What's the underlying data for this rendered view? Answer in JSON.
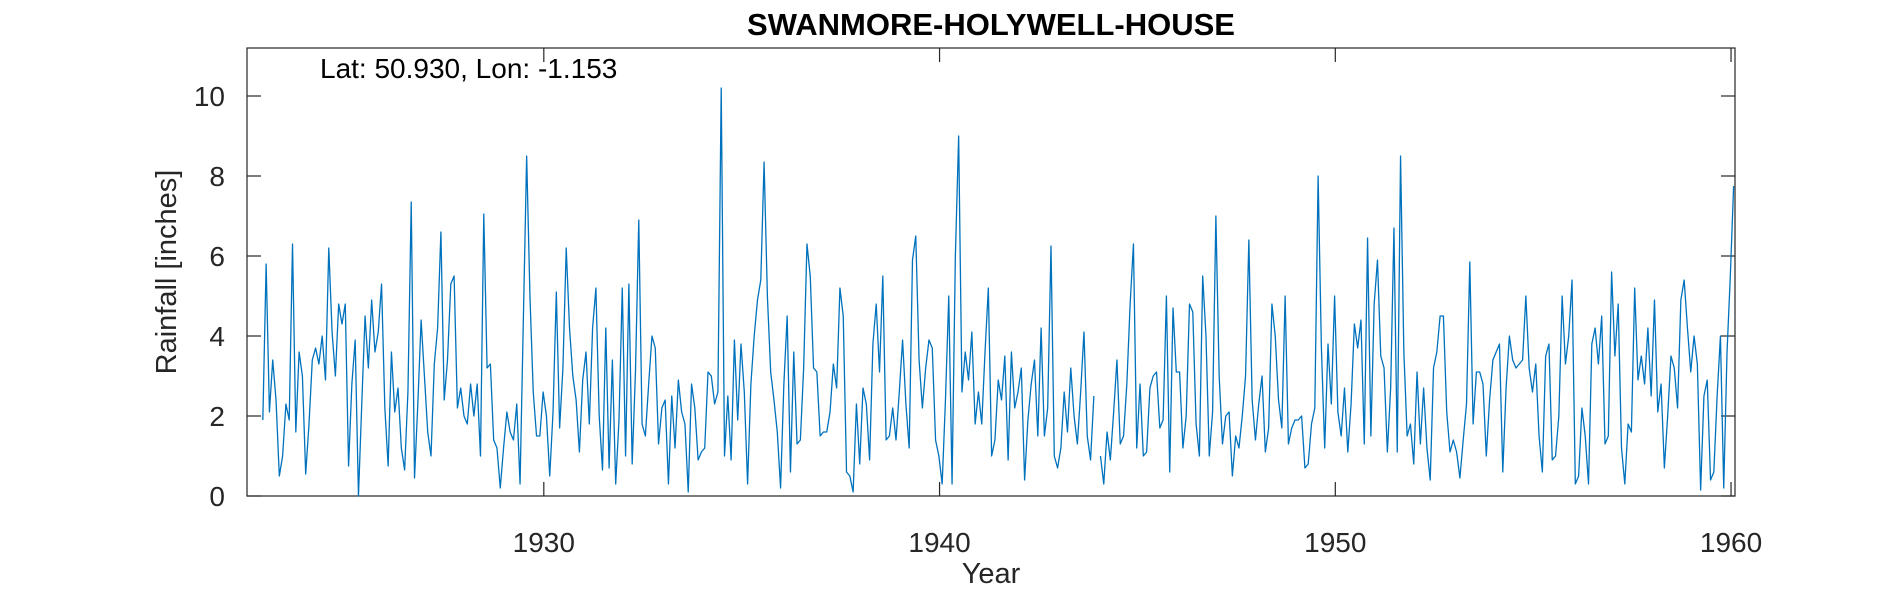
{
  "chart_data": {
    "type": "line",
    "title": "SWANMORE-HOLYWELL-HOUSE",
    "annotation": "Lat: 50.930, Lon: -1.153",
    "xlabel": "Year",
    "ylabel": "Rainfall [inches]",
    "xlim": [
      1922.5,
      1960.1
    ],
    "ylim": [
      0,
      11.2
    ],
    "xticks": [
      1930,
      1940,
      1950,
      1960
    ],
    "yticks": [
      0,
      2,
      4,
      6,
      8,
      10
    ],
    "grid": false,
    "line_color": "#0072BD",
    "series": [
      {
        "x_start": 1922.9,
        "x_step": 0.08333,
        "gap_after_index": [
          251
        ],
        "values": [
          1.9,
          5.8,
          2.1,
          3.4,
          2.4,
          0.5,
          1.0,
          2.3,
          1.9,
          6.3,
          1.6,
          3.6,
          3.0,
          0.55,
          1.8,
          3.4,
          3.7,
          3.3,
          4.0,
          2.9,
          6.2,
          4.1,
          3.0,
          4.8,
          4.3,
          4.8,
          0.75,
          2.8,
          3.9,
          0.0,
          2.3,
          4.5,
          3.2,
          4.9,
          3.6,
          4.1,
          5.3,
          2.2,
          0.75,
          3.6,
          2.1,
          2.7,
          1.2,
          0.65,
          2.6,
          7.35,
          0.45,
          2.3,
          4.4,
          3.0,
          1.6,
          1.0,
          3.3,
          4.2,
          6.6,
          2.4,
          3.4,
          5.3,
          5.5,
          2.2,
          2.7,
          2.0,
          1.8,
          2.8,
          2.0,
          2.8,
          1.0,
          7.05,
          3.2,
          3.3,
          1.4,
          1.2,
          0.2,
          1.2,
          2.1,
          1.6,
          1.4,
          2.3,
          0.3,
          4.4,
          8.5,
          5.0,
          2.6,
          1.5,
          1.5,
          2.6,
          2.0,
          0.5,
          2.1,
          5.1,
          1.7,
          3.2,
          6.2,
          4.2,
          3.0,
          2.4,
          1.1,
          2.9,
          3.6,
          1.8,
          4.2,
          5.2,
          2.0,
          0.65,
          4.2,
          0.7,
          3.4,
          0.3,
          1.9,
          5.2,
          1.0,
          5.3,
          0.8,
          3.1,
          6.9,
          1.8,
          1.5,
          2.8,
          4.0,
          3.7,
          1.3,
          2.2,
          2.4,
          0.3,
          2.5,
          1.2,
          2.9,
          2.1,
          1.8,
          0.1,
          2.8,
          2.2,
          0.9,
          1.1,
          1.2,
          3.1,
          3.0,
          2.3,
          2.6,
          10.2,
          1.0,
          2.5,
          0.9,
          3.9,
          1.9,
          3.8,
          2.6,
          0.3,
          2.8,
          4.0,
          4.9,
          5.4,
          8.35,
          5.0,
          3.1,
          2.4,
          1.6,
          0.2,
          2.8,
          4.5,
          0.6,
          3.6,
          1.3,
          1.4,
          3.2,
          6.3,
          5.5,
          3.2,
          3.1,
          1.5,
          1.6,
          1.6,
          2.1,
          3.3,
          2.7,
          5.2,
          4.5,
          0.6,
          0.5,
          0.1,
          2.3,
          0.8,
          2.7,
          2.3,
          0.9,
          3.8,
          4.8,
          3.1,
          5.5,
          1.4,
          1.5,
          2.2,
          1.4,
          2.6,
          3.9,
          2.3,
          1.2,
          5.9,
          6.5,
          3.4,
          2.2,
          3.2,
          3.9,
          3.7,
          1.4,
          1.0,
          0.3,
          2.4,
          5.0,
          0.3,
          6.0,
          9.0,
          2.6,
          3.6,
          2.9,
          4.1,
          1.8,
          2.6,
          1.8,
          3.6,
          5.2,
          1.0,
          1.4,
          2.9,
          2.4,
          3.5,
          0.9,
          3.6,
          2.2,
          2.6,
          3.2,
          0.4,
          1.9,
          2.8,
          3.4,
          1.5,
          4.2,
          1.5,
          2.2,
          6.25,
          1.0,
          0.7,
          1.2,
          2.6,
          1.6,
          3.2,
          2.0,
          1.3,
          2.6,
          4.1,
          1.5,
          0.9,
          2.5,
          null,
          1.0,
          0.3,
          1.6,
          0.9,
          2.1,
          3.4,
          1.3,
          1.5,
          2.8,
          4.8,
          6.3,
          1.2,
          2.8,
          1.0,
          1.1,
          2.7,
          3.0,
          3.1,
          1.7,
          1.9,
          5.0,
          0.6,
          4.7,
          3.1,
          3.1,
          1.2,
          2.0,
          4.8,
          4.6,
          1.8,
          1.0,
          5.5,
          4.0,
          1.0,
          2.1,
          7.0,
          3.0,
          1.3,
          2.0,
          2.1,
          0.5,
          1.5,
          1.2,
          2.0,
          3.0,
          6.4,
          2.4,
          1.4,
          2.3,
          3.0,
          1.1,
          1.7,
          4.8,
          4.0,
          2.4,
          1.7,
          5.0,
          1.3,
          1.7,
          1.9,
          1.9,
          2.0,
          0.7,
          0.8,
          1.8,
          2.2,
          8.0,
          3.7,
          1.2,
          3.8,
          2.3,
          5.0,
          2.1,
          1.5,
          2.7,
          1.1,
          2.3,
          4.3,
          3.7,
          4.4,
          1.3,
          6.45,
          1.5,
          4.8,
          5.9,
          3.5,
          3.2,
          1.1,
          2.7,
          6.7,
          1.1,
          8.5,
          3.6,
          1.5,
          1.8,
          0.8,
          3.1,
          1.3,
          2.7,
          1.2,
          0.4,
          3.2,
          3.6,
          4.5,
          4.5,
          2.1,
          1.1,
          1.4,
          1.1,
          0.45,
          1.4,
          2.3,
          5.85,
          1.8,
          3.1,
          3.1,
          2.8,
          1.0,
          2.4,
          3.4,
          3.6,
          3.8,
          0.6,
          2.7,
          4.0,
          3.4,
          3.2,
          3.3,
          3.4,
          5.0,
          3.2,
          2.6,
          3.3,
          1.5,
          0.6,
          3.5,
          3.8,
          0.9,
          1.0,
          2.0,
          5.0,
          3.3,
          4.0,
          5.4,
          0.3,
          0.5,
          2.2,
          1.5,
          0.3,
          3.8,
          4.2,
          3.3,
          4.5,
          1.3,
          1.5,
          5.6,
          3.5,
          4.8,
          1.2,
          0.3,
          1.8,
          1.6,
          5.2,
          2.9,
          3.5,
          2.8,
          4.2,
          2.5,
          4.9,
          2.1,
          2.8,
          0.7,
          2.0,
          3.5,
          3.2,
          2.2,
          4.9,
          5.4,
          4.2,
          3.1,
          4.0,
          3.3,
          0.15,
          2.5,
          2.9,
          0.4,
          0.6,
          2.5,
          4.0,
          0.2,
          3.6,
          5.5,
          7.75
        ]
      }
    ]
  }
}
